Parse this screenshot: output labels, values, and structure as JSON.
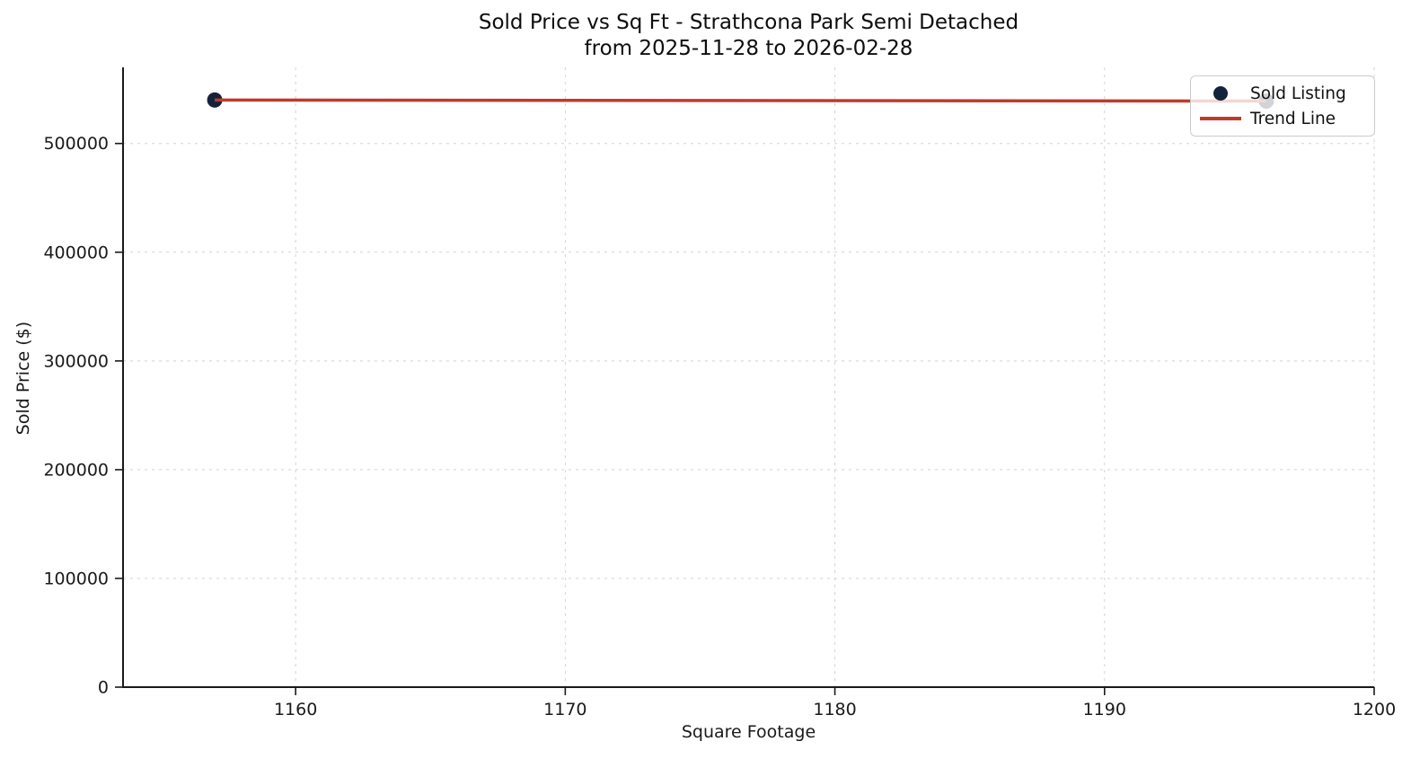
{
  "title": {
    "line1": "Sold Price vs Sq Ft - Strathcona Park Semi Detached",
    "line2": "from 2025-11-28 to 2026-02-28"
  },
  "axes": {
    "xlabel": "Square Footage",
    "ylabel": "Sold Price ($)"
  },
  "legend": {
    "items": [
      {
        "label": "Sold Listing",
        "marker": "dot",
        "color": "#14233c"
      },
      {
        "label": "Trend Line",
        "marker": "line",
        "color": "#c03a2b"
      }
    ]
  },
  "colors": {
    "point": "#14233c",
    "trend": "#c03a2b",
    "grid": "#cccccc",
    "spine": "#1a1a1a",
    "tick_text": "#1a1a1a"
  },
  "chart_data": {
    "type": "scatter",
    "title": "Sold Price vs Sq Ft - Strathcona Park Semi Detached",
    "subtitle": "from 2025-11-28 to 2026-02-28",
    "xlabel": "Square Footage",
    "ylabel": "Sold Price ($)",
    "xlim": [
      1153.6,
      1200
    ],
    "ylim": [
      0,
      570000
    ],
    "xticks": [
      1160,
      1170,
      1180,
      1190,
      1200
    ],
    "yticks": [
      0,
      100000,
      200000,
      300000,
      400000,
      500000
    ],
    "grid": true,
    "grid_style": "dashed",
    "legend_position": "upper right",
    "series": [
      {
        "name": "Sold Listing",
        "type": "scatter",
        "color": "#14233c",
        "points": [
          {
            "sqft": 1157,
            "price": 540000
          },
          {
            "sqft": 1196,
            "price": 539000
          }
        ]
      },
      {
        "name": "Trend Line",
        "type": "line",
        "color": "#c03a2b",
        "points": [
          {
            "sqft": 1157,
            "price": 540000
          },
          {
            "sqft": 1196,
            "price": 539000
          }
        ]
      }
    ]
  }
}
